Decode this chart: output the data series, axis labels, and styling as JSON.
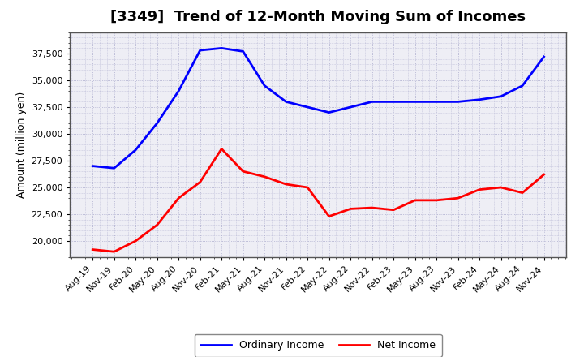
{
  "title": "[3349]  Trend of 12-Month Moving Sum of Incomes",
  "ylabel": "Amount (million yen)",
  "xlabels": [
    "Aug-19",
    "Nov-19",
    "Feb-20",
    "May-20",
    "Aug-20",
    "Nov-20",
    "Feb-21",
    "May-21",
    "Aug-21",
    "Nov-21",
    "Feb-22",
    "May-22",
    "Aug-22",
    "Nov-22",
    "Feb-23",
    "May-23",
    "Aug-23",
    "Nov-23",
    "Feb-24",
    "May-24",
    "Aug-24",
    "Nov-24"
  ],
  "ordinary_income": [
    27000,
    26800,
    28500,
    31000,
    34000,
    37800,
    38000,
    37700,
    34500,
    33000,
    32500,
    32000,
    32500,
    33000,
    33000,
    33000,
    33000,
    33000,
    33200,
    33500,
    34500,
    37200
  ],
  "net_income": [
    19200,
    19000,
    20000,
    21500,
    24000,
    25500,
    28600,
    26500,
    26000,
    25300,
    25000,
    22300,
    23000,
    23100,
    22900,
    23800,
    23800,
    24000,
    24800,
    25000,
    24500,
    26200
  ],
  "ordinary_color": "#0000FF",
  "net_color": "#FF0000",
  "ylim_min": 18500,
  "ylim_max": 39500,
  "yticks": [
    20000,
    22500,
    25000,
    27500,
    30000,
    32500,
    35000,
    37500
  ],
  "bg_color": "#FFFFFF",
  "plot_bg_color": "#EEEEF5",
  "grid_color": "#AAAACC",
  "line_width": 2.0,
  "title_fontsize": 13,
  "axis_label_fontsize": 9,
  "tick_fontsize": 8,
  "legend_fontsize": 9
}
